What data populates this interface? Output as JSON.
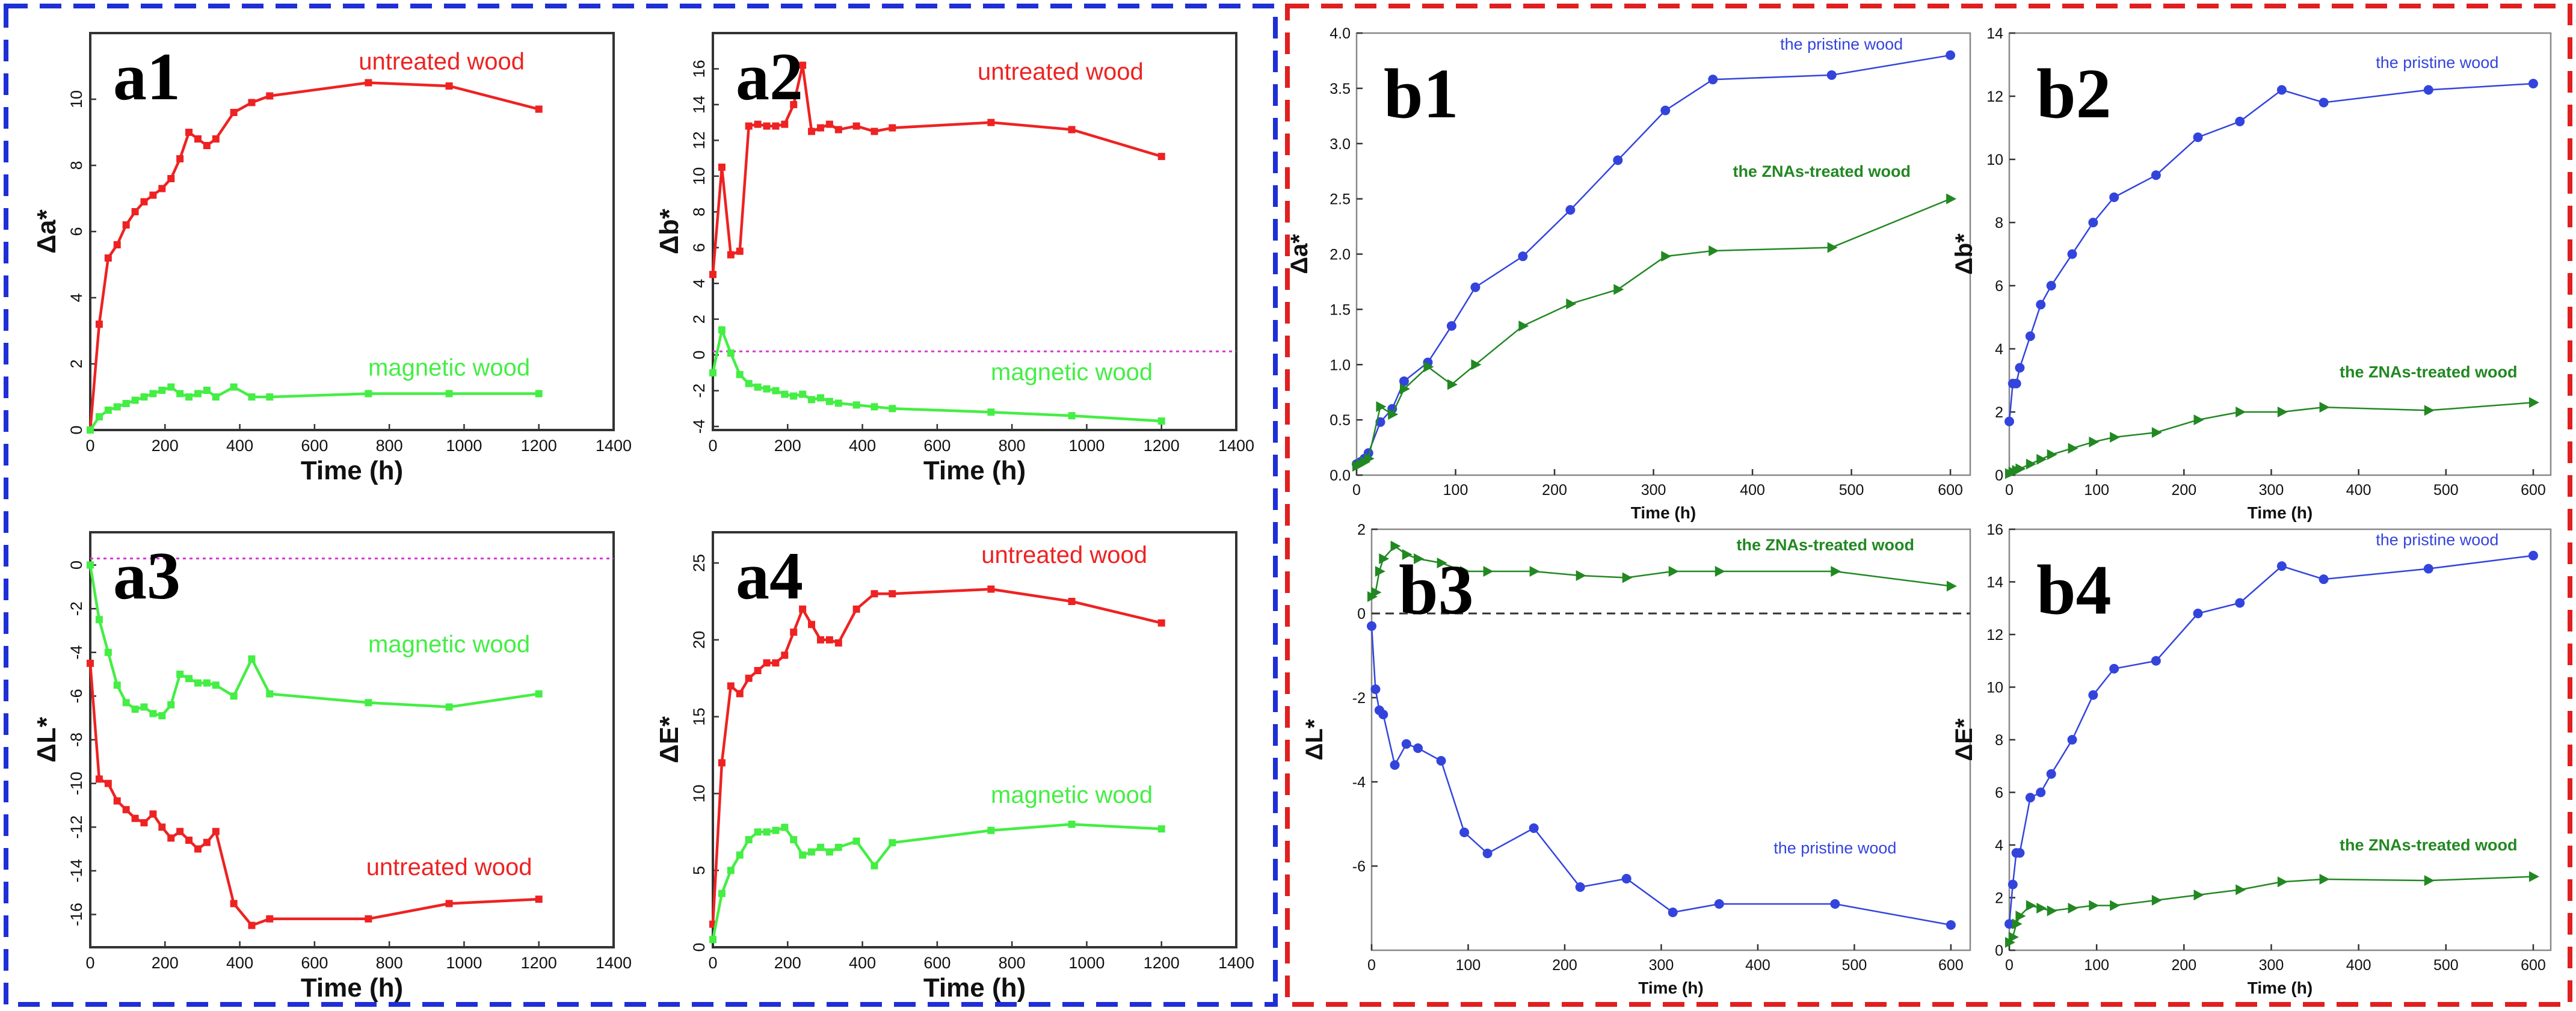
{
  "figure": {
    "group_a_border_color": "#1f2fd6",
    "group_b_border_color": "#e02020"
  },
  "chart_data": [
    {
      "id": "a1",
      "label": "a1",
      "type": "line",
      "xlabel": "Time (h)",
      "ylabel": "Δa*",
      "xlim": [
        0,
        1400
      ],
      "ylim": [
        0,
        12
      ],
      "xticks": [
        0,
        200,
        400,
        600,
        800,
        1000,
        1200,
        1400
      ],
      "yticks": [
        0,
        2,
        4,
        6,
        8,
        10
      ],
      "baseline": null,
      "series": [
        {
          "name": "untreated wood",
          "color": "#ee2222",
          "marker": "square",
          "x": [
            0,
            24,
            48,
            72,
            96,
            120,
            144,
            168,
            192,
            216,
            240,
            264,
            288,
            312,
            336,
            384,
            432,
            480,
            744,
            960,
            1200
          ],
          "y": [
            0,
            3.2,
            5.2,
            5.6,
            6.2,
            6.6,
            6.9,
            7.1,
            7.3,
            7.6,
            8.2,
            9.0,
            8.8,
            8.6,
            8.8,
            9.6,
            9.9,
            10.1,
            10.5,
            10.4,
            9.7
          ],
          "label_xy": [
            940,
            10.9
          ]
        },
        {
          "name": "magnetic wood",
          "color": "#44ee44",
          "marker": "square",
          "x": [
            0,
            24,
            48,
            72,
            96,
            120,
            144,
            168,
            192,
            216,
            240,
            264,
            288,
            312,
            336,
            384,
            432,
            480,
            744,
            960,
            1200
          ],
          "y": [
            0,
            0.4,
            0.6,
            0.7,
            0.8,
            0.9,
            1.0,
            1.1,
            1.2,
            1.3,
            1.1,
            1.0,
            1.1,
            1.2,
            1.0,
            1.3,
            1.0,
            1.0,
            1.1,
            1.1,
            1.1
          ],
          "label_xy": [
            960,
            1.65
          ]
        }
      ]
    },
    {
      "id": "a2",
      "label": "a2",
      "type": "line",
      "xlabel": "Time (h)",
      "ylabel": "Δb*",
      "xlim": [
        0,
        1400
      ],
      "ylim": [
        -4.2,
        18
      ],
      "xticks": [
        0,
        200,
        400,
        600,
        800,
        1000,
        1200,
        1400
      ],
      "yticks": [
        -4,
        -2,
        0,
        2,
        4,
        6,
        8,
        10,
        12,
        14,
        16
      ],
      "baseline": 0.2,
      "series": [
        {
          "name": "untreated wood",
          "color": "#ee2222",
          "marker": "square",
          "x": [
            0,
            24,
            48,
            72,
            96,
            120,
            144,
            168,
            192,
            216,
            240,
            264,
            288,
            312,
            336,
            384,
            432,
            480,
            744,
            960,
            1200
          ],
          "y": [
            4.5,
            10.5,
            5.6,
            5.8,
            12.8,
            12.9,
            12.8,
            12.8,
            12.9,
            14.0,
            16.2,
            12.5,
            12.7,
            12.9,
            12.6,
            12.8,
            12.5,
            12.7,
            13.0,
            12.6,
            11.1
          ],
          "label_xy": [
            930,
            15.4
          ]
        },
        {
          "name": "magnetic wood",
          "color": "#44ee44",
          "marker": "square",
          "x": [
            0,
            24,
            48,
            72,
            96,
            120,
            144,
            168,
            192,
            216,
            240,
            264,
            288,
            312,
            336,
            384,
            432,
            480,
            744,
            960,
            1200
          ],
          "y": [
            -1.0,
            1.4,
            0.1,
            -1.1,
            -1.6,
            -1.8,
            -1.9,
            -2.0,
            -2.2,
            -2.3,
            -2.2,
            -2.5,
            -2.4,
            -2.6,
            -2.7,
            -2.8,
            -2.9,
            -3.0,
            -3.2,
            -3.4,
            -3.7
          ],
          "label_xy": [
            960,
            -1.4
          ]
        }
      ]
    },
    {
      "id": "a3",
      "label": "a3",
      "type": "line",
      "xlabel": "Time (h)",
      "ylabel": "ΔL*",
      "xlim": [
        0,
        1400
      ],
      "ylim": [
        -17.5,
        1.5
      ],
      "xticks": [
        0,
        200,
        400,
        600,
        800,
        1000,
        1200,
        1400
      ],
      "yticks": [
        -16,
        -14,
        -12,
        -10,
        -8,
        -6,
        -4,
        -2,
        0
      ],
      "baseline": 0.3,
      "series": [
        {
          "name": "untreated wood",
          "color": "#ee2222",
          "marker": "square",
          "x": [
            0,
            24,
            48,
            72,
            96,
            120,
            144,
            168,
            192,
            216,
            240,
            264,
            288,
            312,
            336,
            384,
            432,
            480,
            744,
            960,
            1200
          ],
          "y": [
            -4.5,
            -9.8,
            -10.0,
            -10.8,
            -11.2,
            -11.6,
            -11.8,
            -11.4,
            -12.0,
            -12.5,
            -12.2,
            -12.6,
            -13.0,
            -12.7,
            -12.2,
            -15.5,
            -16.5,
            -16.2,
            -16.2,
            -15.5,
            -15.3
          ],
          "label_xy": [
            960,
            -14.2
          ]
        },
        {
          "name": "magnetic wood",
          "color": "#44ee44",
          "marker": "square",
          "x": [
            0,
            24,
            48,
            72,
            96,
            120,
            144,
            168,
            192,
            216,
            240,
            264,
            288,
            312,
            336,
            384,
            432,
            480,
            744,
            960,
            1200
          ],
          "y": [
            0,
            -2.5,
            -4.0,
            -5.5,
            -6.3,
            -6.6,
            -6.5,
            -6.8,
            -6.9,
            -6.4,
            -5.0,
            -5.2,
            -5.4,
            -5.4,
            -5.5,
            -6.0,
            -4.3,
            -5.9,
            -6.3,
            -6.5,
            -5.9
          ],
          "label_xy": [
            960,
            -4.0
          ]
        }
      ]
    },
    {
      "id": "a4",
      "label": "a4",
      "type": "line",
      "xlabel": "Time (h)",
      "ylabel": "ΔE*",
      "xlim": [
        0,
        1400
      ],
      "ylim": [
        0,
        27
      ],
      "xticks": [
        0,
        200,
        400,
        600,
        800,
        1000,
        1200,
        1400
      ],
      "yticks": [
        0,
        5,
        10,
        15,
        20,
        25
      ],
      "baseline": null,
      "series": [
        {
          "name": "untreated wood",
          "color": "#ee2222",
          "marker": "square",
          "x": [
            0,
            24,
            48,
            72,
            96,
            120,
            144,
            168,
            192,
            216,
            240,
            264,
            288,
            312,
            336,
            384,
            432,
            480,
            744,
            960,
            1200
          ],
          "y": [
            1.5,
            12.0,
            17.0,
            16.5,
            17.5,
            18.0,
            18.5,
            18.5,
            19.0,
            20.5,
            22.0,
            21.0,
            20.0,
            20.0,
            19.8,
            22.0,
            23.0,
            23.0,
            23.3,
            22.5,
            21.1
          ],
          "label_xy": [
            940,
            25.0
          ]
        },
        {
          "name": "magnetic wood",
          "color": "#44ee44",
          "marker": "square",
          "x": [
            0,
            24,
            48,
            72,
            96,
            120,
            144,
            168,
            192,
            216,
            240,
            264,
            288,
            312,
            336,
            384,
            432,
            480,
            744,
            960,
            1200
          ],
          "y": [
            0.5,
            3.5,
            5.0,
            6.0,
            7.0,
            7.5,
            7.5,
            7.6,
            7.8,
            7.0,
            6.0,
            6.2,
            6.5,
            6.2,
            6.5,
            6.9,
            5.3,
            6.8,
            7.6,
            8.0,
            7.7
          ],
          "label_xy": [
            960,
            9.4
          ]
        }
      ]
    },
    {
      "id": "b1",
      "label": "b1",
      "type": "line",
      "xlabel": "Time (h)",
      "ylabel": "Δa*",
      "xlim": [
        0,
        620
      ],
      "ylim": [
        0,
        4.0
      ],
      "xticks": [
        0,
        100,
        200,
        300,
        400,
        500,
        600
      ],
      "yticks": [
        0.0,
        0.5,
        1.0,
        1.5,
        2.0,
        2.5,
        3.0,
        3.5,
        4.0
      ],
      "ytick_format": "fixed1",
      "baseline": null,
      "series": [
        {
          "name": "the pristine wood",
          "color": "#3344dd",
          "marker": "circle",
          "x": [
            0,
            4,
            8,
            12,
            24,
            36,
            48,
            72,
            96,
            120,
            168,
            216,
            264,
            312,
            360,
            480,
            600
          ],
          "y": [
            0.1,
            0.12,
            0.15,
            0.2,
            0.48,
            0.6,
            0.85,
            1.02,
            1.35,
            1.7,
            1.98,
            2.4,
            2.85,
            3.3,
            3.58,
            3.62,
            3.8
          ],
          "label_xy": [
            490,
            3.85
          ]
        },
        {
          "name": "the ZNAs-treated wood",
          "color": "#228822",
          "marker": "triangle",
          "x": [
            0,
            4,
            8,
            12,
            24,
            36,
            48,
            72,
            96,
            120,
            168,
            216,
            264,
            312,
            360,
            480,
            600
          ],
          "y": [
            0.08,
            0.1,
            0.12,
            0.15,
            0.62,
            0.55,
            0.78,
            0.98,
            0.82,
            1.0,
            1.35,
            1.55,
            1.68,
            1.98,
            2.03,
            2.06,
            2.5
          ],
          "label_xy": [
            470,
            2.7
          ]
        }
      ]
    },
    {
      "id": "b2",
      "label": "b2",
      "type": "line",
      "xlabel": "Time (h)",
      "ylabel": "Δb*",
      "xlim": [
        0,
        620
      ],
      "ylim": [
        0,
        14
      ],
      "xticks": [
        0,
        100,
        200,
        300,
        400,
        500,
        600
      ],
      "yticks": [
        0,
        2,
        4,
        6,
        8,
        10,
        12,
        14
      ],
      "baseline": null,
      "series": [
        {
          "name": "the pristine wood",
          "color": "#3344dd",
          "marker": "circle",
          "x": [
            0,
            4,
            8,
            12,
            24,
            36,
            48,
            72,
            96,
            120,
            168,
            216,
            264,
            312,
            360,
            480,
            600
          ],
          "y": [
            1.7,
            2.9,
            2.9,
            3.4,
            4.4,
            5.4,
            6.0,
            7.0,
            8.0,
            8.8,
            9.5,
            10.7,
            11.2,
            12.2,
            11.8,
            12.2,
            12.4
          ],
          "label_xy": [
            490,
            12.9
          ]
        },
        {
          "name": "the ZNAs-treated wood",
          "color": "#228822",
          "marker": "triangle",
          "x": [
            0,
            4,
            8,
            12,
            24,
            36,
            48,
            72,
            96,
            120,
            168,
            216,
            264,
            312,
            360,
            480,
            600
          ],
          "y": [
            0.05,
            0.1,
            0.15,
            0.2,
            0.35,
            0.5,
            0.65,
            0.85,
            1.05,
            1.2,
            1.35,
            1.75,
            2.0,
            2.0,
            2.15,
            2.05,
            2.3
          ],
          "label_xy": [
            480,
            3.1
          ]
        }
      ]
    },
    {
      "id": "b3",
      "label": "b3",
      "type": "line",
      "xlabel": "Time (h)",
      "ylabel": "ΔL*",
      "xlim": [
        0,
        620
      ],
      "ylim": [
        -8.0,
        2.0
      ],
      "xticks": [
        0,
        100,
        200,
        300,
        400,
        500,
        600
      ],
      "yticks": [
        -6,
        -4,
        -2,
        0,
        2
      ],
      "baseline": 0,
      "baseline_style": "dashed-black",
      "series": [
        {
          "name": "the pristine wood",
          "color": "#3344dd",
          "marker": "circle",
          "x": [
            0,
            4,
            8,
            12,
            24,
            36,
            48,
            72,
            96,
            120,
            168,
            216,
            264,
            312,
            360,
            480,
            600
          ],
          "y": [
            -0.3,
            -1.8,
            -2.3,
            -2.4,
            -3.6,
            -3.1,
            -3.2,
            -3.5,
            -5.2,
            -5.7,
            -5.1,
            -6.5,
            -6.3,
            -7.1,
            -6.9,
            -6.9,
            -7.4
          ],
          "label_xy": [
            480,
            -5.7
          ]
        },
        {
          "name": "the ZNAs-treated wood",
          "color": "#228822",
          "marker": "triangle",
          "x": [
            0,
            4,
            8,
            12,
            24,
            36,
            48,
            72,
            96,
            120,
            168,
            216,
            264,
            312,
            360,
            480,
            600
          ],
          "y": [
            0.4,
            0.5,
            1.0,
            1.3,
            1.6,
            1.4,
            1.3,
            1.2,
            1.0,
            1.0,
            1.0,
            0.9,
            0.85,
            1.0,
            1.0,
            1.0,
            0.65
          ],
          "label_xy": [
            470,
            1.5
          ]
        }
      ]
    },
    {
      "id": "b4",
      "label": "b4",
      "type": "line",
      "xlabel": "Time (h)",
      "ylabel": "ΔE*",
      "xlim": [
        0,
        620
      ],
      "ylim": [
        0,
        16
      ],
      "xticks": [
        0,
        100,
        200,
        300,
        400,
        500,
        600
      ],
      "yticks": [
        0,
        2,
        4,
        6,
        8,
        10,
        12,
        14,
        16
      ],
      "baseline": null,
      "series": [
        {
          "name": "the pristine wood",
          "color": "#3344dd",
          "marker": "circle",
          "x": [
            0,
            4,
            8,
            12,
            24,
            36,
            48,
            72,
            96,
            120,
            168,
            216,
            264,
            312,
            360,
            480,
            600
          ],
          "y": [
            1.0,
            2.5,
            3.7,
            3.7,
            5.8,
            6.0,
            6.7,
            8.0,
            9.7,
            10.7,
            11.0,
            12.8,
            13.2,
            14.6,
            14.1,
            14.5,
            15.0
          ],
          "label_xy": [
            490,
            15.4
          ]
        },
        {
          "name": "the ZNAs-treated wood",
          "color": "#228822",
          "marker": "triangle",
          "x": [
            0,
            4,
            8,
            12,
            24,
            36,
            48,
            72,
            96,
            120,
            168,
            216,
            264,
            312,
            360,
            480,
            600
          ],
          "y": [
            0.3,
            0.5,
            1.0,
            1.3,
            1.7,
            1.6,
            1.5,
            1.6,
            1.7,
            1.7,
            1.9,
            2.1,
            2.3,
            2.6,
            2.7,
            2.65,
            2.8
          ],
          "label_xy": [
            480,
            3.8
          ]
        }
      ]
    }
  ]
}
